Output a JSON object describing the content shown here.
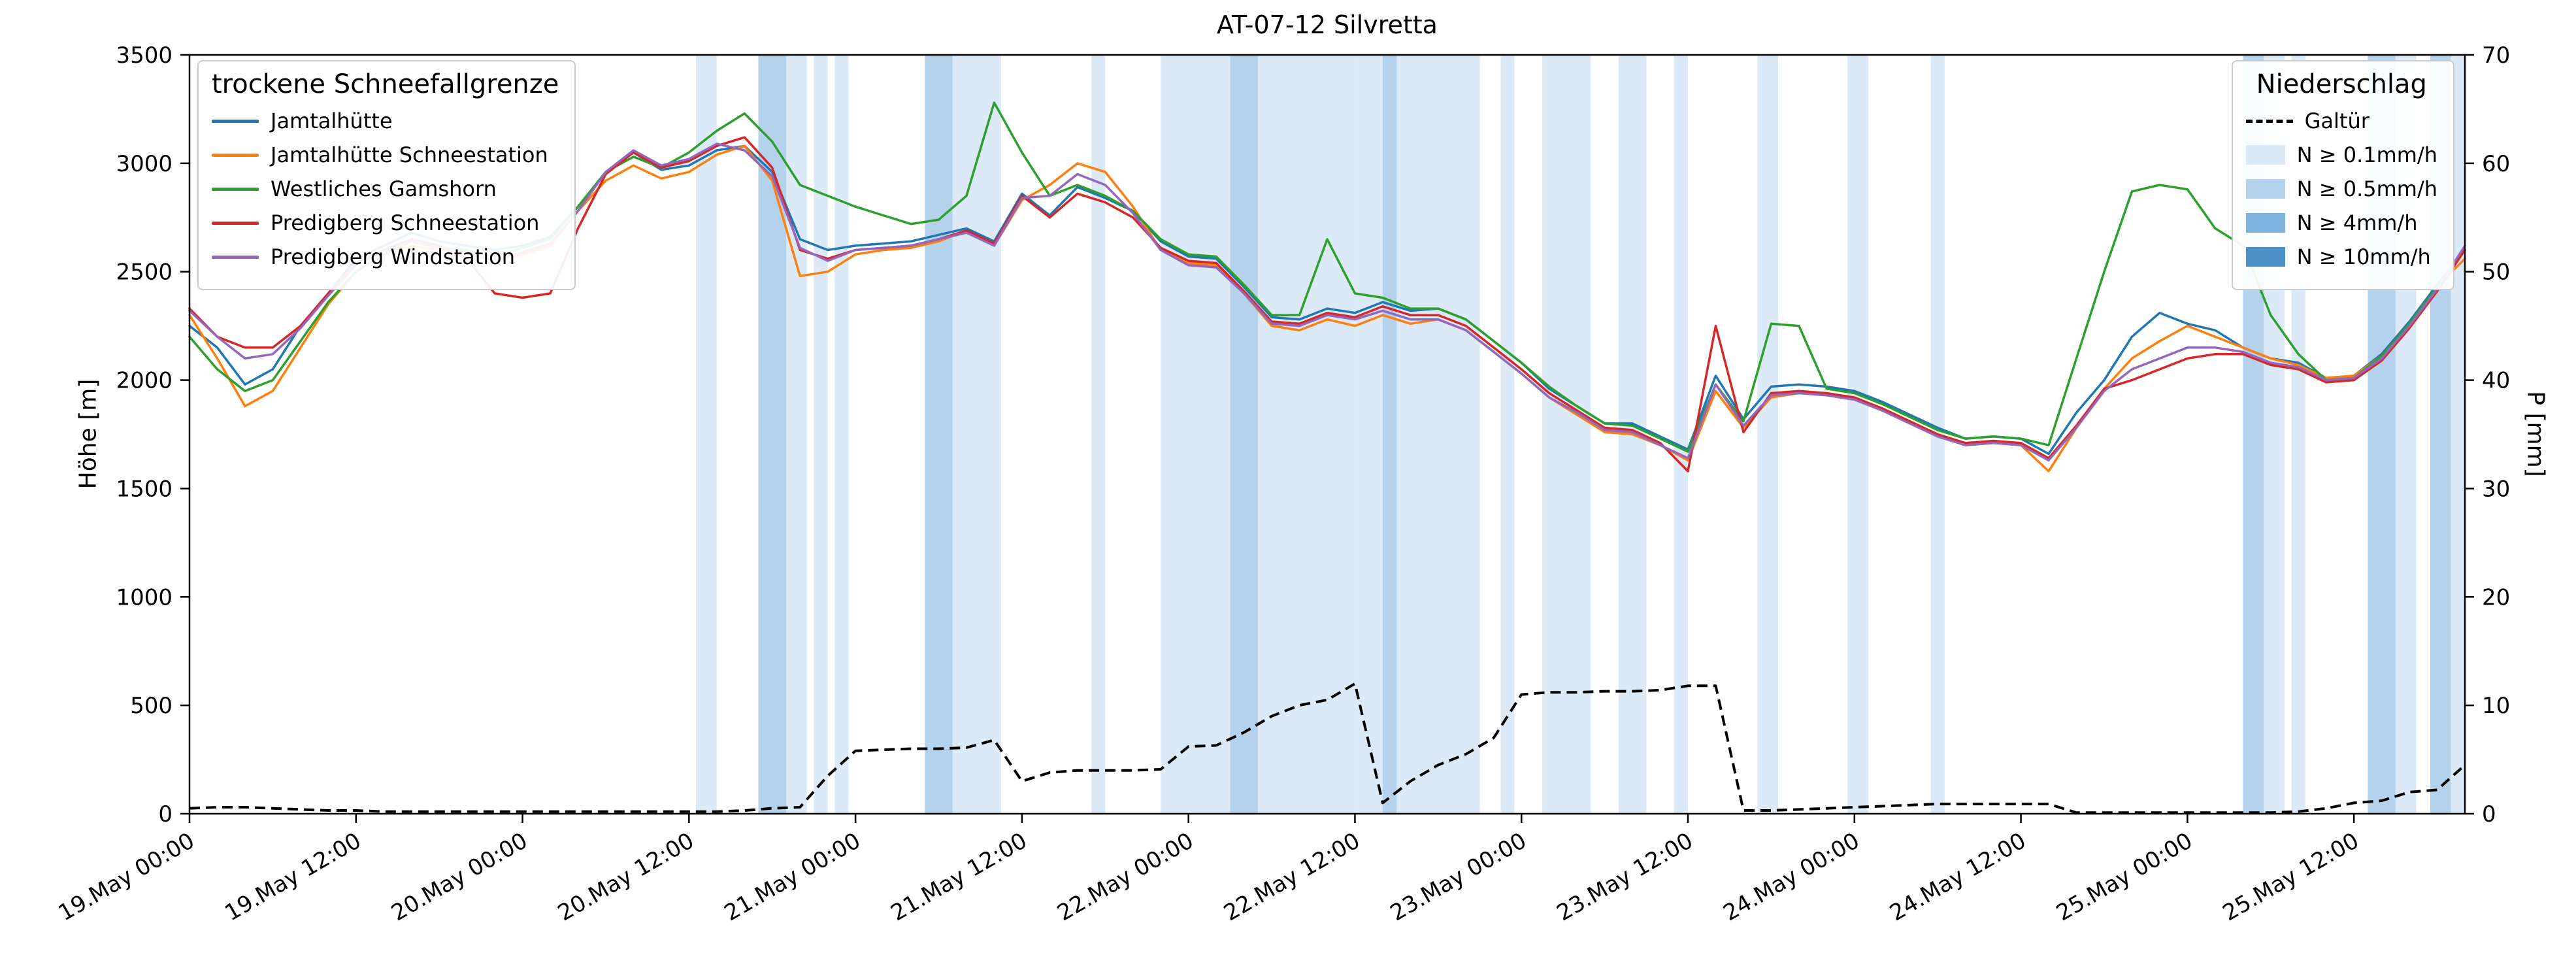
{
  "legends": {
    "lines_title": "trockene Schneefallgrenze",
    "precip_title": "Niederschlag"
  },
  "axes": {
    "left_ticks": [
      0,
      500,
      1000,
      1500,
      2000,
      2500,
      3000,
      3500
    ],
    "right_ticks": [
      0,
      10,
      20,
      30,
      40,
      50,
      60,
      70
    ],
    "x_tick_hours": [
      0,
      12,
      24,
      36,
      48,
      60,
      72,
      84,
      96,
      108,
      120,
      132,
      144,
      156
    ],
    "x_tick_labels": [
      "19.May 00:00",
      "19.May 12:00",
      "20.May 00:00",
      "20.May 12:00",
      "21.May 00:00",
      "21.May 12:00",
      "22.May 00:00",
      "22.May 12:00",
      "23.May 00:00",
      "23.May 12:00",
      "24.May 00:00",
      "24.May 12:00",
      "25.May 00:00",
      "25.May 12:00"
    ]
  },
  "chart_data": {
    "type": "line",
    "title": "AT-07-12 Silvretta",
    "ylabel_left": "Höhe [m]",
    "ylabel_right": "P [mm]",
    "ylim_left": [
      0,
      3500
    ],
    "ylim_right": [
      0,
      70
    ],
    "x_unit": "hours since 19 May 00:00",
    "x_step_hours": 2,
    "x_range_hours": [
      0,
      164
    ],
    "legend_position": "upper left / upper right",
    "grid": false,
    "series": [
      {
        "name": "Jamtalhütte",
        "color": "#1f77b4",
        "values": [
          2250,
          2150,
          1980,
          2050,
          2250,
          2400,
          2560,
          2620,
          2680,
          2640,
          2620,
          2600,
          2620,
          2660,
          2800,
          2960,
          3050,
          2970,
          2990,
          3060,
          3080,
          2960,
          2650,
          2600,
          2620,
          2630,
          2640,
          2670,
          2700,
          2640,
          2860,
          2760,
          2890,
          2840,
          2780,
          2640,
          2570,
          2560,
          2430,
          2290,
          2280,
          2330,
          2310,
          2360,
          2320,
          2330,
          2280,
          2180,
          2080,
          1960,
          1880,
          1800,
          1800,
          1740,
          1680,
          2020,
          1820,
          1970,
          1980,
          1970,
          1950,
          1900,
          1840,
          1780,
          1730,
          1740,
          1730,
          1660,
          1850,
          2000,
          2200,
          2310,
          2260,
          2230,
          2150,
          2100,
          2080,
          2010,
          2020,
          2120,
          2270,
          2440,
          2600
        ]
      },
      {
        "name": "Jamtalhütte Schneestation",
        "color": "#ff7f0e",
        "values": [
          2300,
          2100,
          1880,
          1950,
          2150,
          2350,
          2500,
          2580,
          2620,
          2600,
          2580,
          2550,
          2580,
          2620,
          2780,
          2920,
          2990,
          2930,
          2960,
          3040,
          3080,
          2920,
          2480,
          2500,
          2580,
          2600,
          2610,
          2640,
          2690,
          2620,
          2830,
          2900,
          3000,
          2960,
          2800,
          2600,
          2540,
          2530,
          2400,
          2250,
          2230,
          2280,
          2250,
          2300,
          2260,
          2280,
          2230,
          2130,
          2030,
          1920,
          1840,
          1760,
          1750,
          1700,
          1630,
          1950,
          1780,
          1920,
          1940,
          1930,
          1910,
          1860,
          1800,
          1740,
          1700,
          1710,
          1700,
          1580,
          1780,
          1960,
          2100,
          2180,
          2250,
          2200,
          2150,
          2100,
          2070,
          2010,
          2020,
          2110,
          2260,
          2430,
          2560
        ]
      },
      {
        "name": "Westliches Gamshorn",
        "color": "#2ca02c",
        "values": [
          2200,
          2050,
          1950,
          2000,
          2180,
          2360,
          2500,
          2580,
          2640,
          2610,
          2600,
          2570,
          2610,
          2650,
          2800,
          2960,
          3030,
          2980,
          3050,
          3150,
          3230,
          3100,
          2900,
          2850,
          2800,
          2760,
          2720,
          2740,
          2850,
          3280,
          3050,
          2850,
          2900,
          2850,
          2780,
          2650,
          2580,
          2570,
          2440,
          2300,
          2300,
          2650,
          2400,
          2380,
          2330,
          2330,
          2280,
          2180,
          2080,
          1970,
          1880,
          1800,
          1790,
          1730,
          1670,
          1980,
          1810,
          2260,
          2250,
          1960,
          1940,
          1890,
          1830,
          1770,
          1730,
          1740,
          1730,
          1700,
          2100,
          2500,
          2870,
          2900,
          2880,
          2700,
          2620,
          2300,
          2120,
          2000,
          2010,
          2110,
          2260,
          2430,
          2600
        ]
      },
      {
        "name": "Predigberg Schneestation",
        "color": "#d62728",
        "values": [
          2330,
          2200,
          2150,
          2150,
          2250,
          2400,
          2540,
          2600,
          2650,
          2620,
          2560,
          2400,
          2380,
          2400,
          2700,
          2950,
          3050,
          2980,
          3010,
          3080,
          3120,
          2980,
          2600,
          2560,
          2600,
          2610,
          2620,
          2650,
          2690,
          2630,
          2850,
          2750,
          2860,
          2820,
          2750,
          2610,
          2550,
          2540,
          2410,
          2270,
          2260,
          2310,
          2290,
          2340,
          2300,
          2300,
          2250,
          2150,
          2050,
          1940,
          1860,
          1780,
          1770,
          1710,
          1580,
          2250,
          1760,
          1940,
          1950,
          1940,
          1920,
          1870,
          1810,
          1750,
          1710,
          1720,
          1710,
          1640,
          1790,
          1960,
          2000,
          2050,
          2100,
          2120,
          2120,
          2070,
          2050,
          1990,
          2000,
          2090,
          2240,
          2410,
          2600
        ]
      },
      {
        "name": "Predigberg Windstation",
        "color": "#9467bd",
        "values": [
          2320,
          2200,
          2100,
          2120,
          2240,
          2390,
          2530,
          2600,
          2640,
          2610,
          2590,
          2550,
          2590,
          2630,
          2780,
          2960,
          3060,
          2990,
          3020,
          3090,
          3060,
          2940,
          2610,
          2550,
          2600,
          2610,
          2620,
          2650,
          2680,
          2620,
          2840,
          2850,
          2950,
          2900,
          2770,
          2600,
          2530,
          2520,
          2400,
          2260,
          2250,
          2300,
          2280,
          2320,
          2280,
          2280,
          2230,
          2130,
          2030,
          1920,
          1850,
          1770,
          1760,
          1700,
          1640,
          1980,
          1790,
          1930,
          1940,
          1930,
          1910,
          1860,
          1800,
          1740,
          1700,
          1710,
          1700,
          1630,
          1780,
          1950,
          2050,
          2100,
          2150,
          2150,
          2130,
          2080,
          2060,
          2000,
          2010,
          2100,
          2250,
          2420,
          2620
        ]
      }
    ],
    "precip_line": {
      "name": "Galtür",
      "color": "#000000",
      "style": "dashed",
      "axis": "right",
      "unit": "mm",
      "values": [
        0.5,
        0.6,
        0.6,
        0.5,
        0.4,
        0.3,
        0.3,
        0.2,
        0.2,
        0.2,
        0.2,
        0.2,
        0.2,
        0.2,
        0.2,
        0.2,
        0.2,
        0.2,
        0.2,
        0.2,
        0.3,
        0.5,
        0.6,
        3.5,
        5.8,
        5.9,
        6.0,
        6.0,
        6.1,
        6.8,
        3.0,
        3.8,
        4.0,
        4.0,
        4.0,
        4.1,
        6.2,
        6.3,
        7.5,
        9.0,
        10.0,
        10.5,
        12.0,
        1.0,
        3.0,
        4.5,
        5.5,
        7.0,
        11.0,
        11.2,
        11.2,
        11.3,
        11.3,
        11.4,
        11.8,
        11.8,
        0.3,
        0.3,
        0.4,
        0.5,
        0.6,
        0.7,
        0.8,
        0.9,
        0.9,
        0.9,
        0.9,
        0.9,
        0.1,
        0.1,
        0.1,
        0.1,
        0.1,
        0.1,
        0.1,
        0.1,
        0.2,
        0.5,
        1.0,
        1.2,
        2.0,
        2.2,
        4.5
      ]
    },
    "precip_bands": {
      "levels": [
        {
          "label": "N ≥ 0.1mm/h",
          "color": "#dce9f6"
        },
        {
          "label": "N ≥ 0.5mm/h",
          "color": "#b5d2ec"
        },
        {
          "label": "N ≥ 4mm/h",
          "color": "#7fb2de"
        },
        {
          "label": "N ≥ 10mm/h",
          "color": "#4a90c4"
        }
      ],
      "bands": [
        [
          36.5,
          38,
          1
        ],
        [
          41,
          43,
          2
        ],
        [
          43,
          44.5,
          1
        ],
        [
          45,
          46,
          1
        ],
        [
          46.5,
          47.5,
          1
        ],
        [
          53,
          55,
          2
        ],
        [
          55,
          58.5,
          1
        ],
        [
          65,
          66,
          1
        ],
        [
          70,
          84,
          1
        ],
        [
          75,
          77,
          2
        ],
        [
          84,
          93,
          1
        ],
        [
          86,
          87,
          2
        ],
        [
          94.5,
          95.5,
          1
        ],
        [
          97.5,
          101,
          1
        ],
        [
          103,
          105,
          1
        ],
        [
          107,
          108,
          1
        ],
        [
          113,
          114.5,
          1
        ],
        [
          119.5,
          121,
          1
        ],
        [
          125.5,
          126.5,
          1
        ],
        [
          148,
          149.5,
          2
        ],
        [
          149.5,
          151,
          1
        ],
        [
          151.5,
          152.5,
          1
        ],
        [
          157,
          159,
          2
        ],
        [
          159,
          160.5,
          1
        ],
        [
          161.5,
          163,
          2
        ],
        [
          163,
          164,
          1
        ]
      ]
    }
  }
}
